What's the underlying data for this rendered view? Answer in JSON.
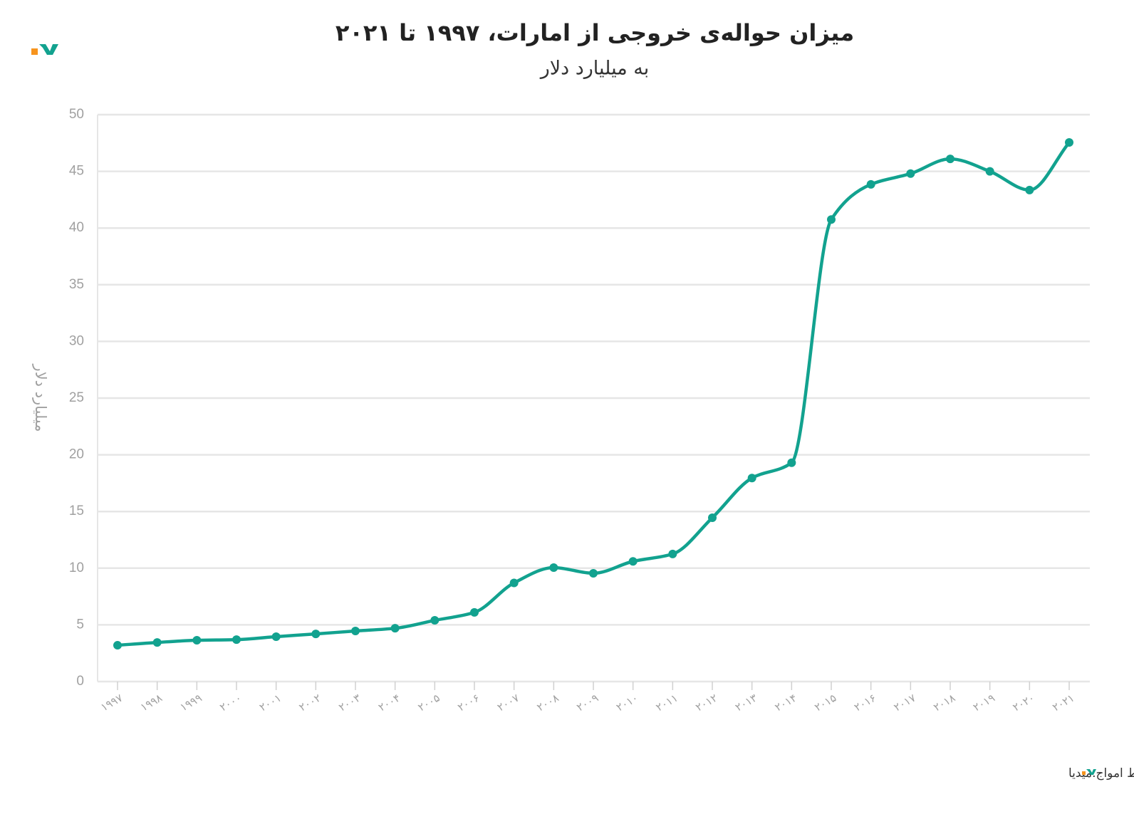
{
  "chart_data": {
    "type": "line",
    "title": "میزان حواله‌ی خروجی از امارات، ۱۹۹۷ تا ۲۰۲۱",
    "subtitle": "به میلیارد دلار",
    "y_label": "میلیارد دلار",
    "source": "منبع: مؤسسه‌ی مشارکت دانش جهانی در زمینه‌ی مهاجرت و توسعه/ بانک جهانی • تولیدشده توسط امواج.میدیا",
    "categories": [
      "۱۹۹۷",
      "۱۹۹۸",
      "۱۹۹۹",
      "۲۰۰۰",
      "۲۰۰۱",
      "۲۰۰۲",
      "۲۰۰۳",
      "۲۰۰۴",
      "۲۰۰۵",
      "۲۰۰۶",
      "۲۰۰۷",
      "۲۰۰۸",
      "۲۰۰۹",
      "۲۰۱۰",
      "۲۰۱۱",
      "۲۰۱۲",
      "۲۰۱۳",
      "۲۰۱۴",
      "۲۰۱۵",
      "۲۰۱۶",
      "۲۰۱۷",
      "۲۰۱۸",
      "۲۰۱۹",
      "۲۰۲۰",
      "۲۰۲۱"
    ],
    "series": [
      {
        "color": "#12a28f",
        "values": [
          3.2,
          3.45,
          3.64,
          3.7,
          3.96,
          4.2,
          4.46,
          4.7,
          5.4,
          6.1,
          8.7,
          10.05,
          9.55,
          10.6,
          11.25,
          14.45,
          17.95,
          19.3,
          40.75,
          43.85,
          44.8,
          46.1,
          45.0,
          43.35,
          47.55
        ]
      }
    ],
    "ylim": [
      0,
      50
    ],
    "yticks": [
      0,
      5,
      10,
      15,
      20,
      25,
      30,
      35,
      40,
      45,
      50
    ],
    "grid": true,
    "smooth": true
  }
}
